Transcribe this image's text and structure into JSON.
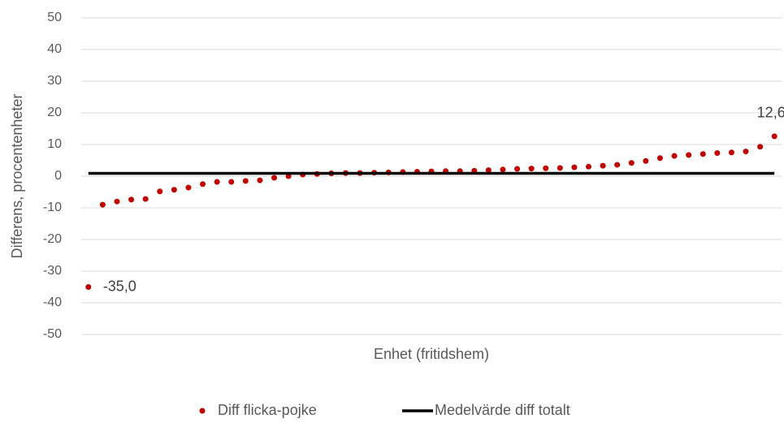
{
  "chart_data": {
    "type": "scatter",
    "ylabel": "Differens, procentenheter",
    "xlabel": "Enhet (fritidshem)",
    "categories": [
      null,
      null,
      null,
      null,
      null,
      null,
      null,
      null,
      null,
      null,
      null,
      null,
      null,
      null,
      null,
      null,
      null,
      null,
      null,
      null,
      null,
      null,
      null,
      null,
      null,
      null,
      null,
      null,
      null,
      null,
      null,
      null,
      null,
      null,
      null,
      null,
      null,
      null,
      null,
      null,
      null,
      null,
      null,
      null,
      null,
      null,
      null,
      null,
      null
    ],
    "series": [
      {
        "name": "Diff flicka-pojke",
        "color": "#c00000",
        "kind": "dot",
        "values": [
          -35.0,
          -9,
          -8,
          -7.4,
          -7.2,
          -4.8,
          -4.3,
          -3.6,
          -2.5,
          -1.8,
          -1.8,
          -1.5,
          -1.3,
          -0.5,
          0,
          0.5,
          0.7,
          0.9,
          1.0,
          1.0,
          1.1,
          1.2,
          1.3,
          1.4,
          1.5,
          1.6,
          1.6,
          1.7,
          1.9,
          2.1,
          2.3,
          2.4,
          2.5,
          2.6,
          2.8,
          3.0,
          3.3,
          3.6,
          4.2,
          4.8,
          5.7,
          6.4,
          6.7,
          7.0,
          7.3,
          7.5,
          7.8,
          9.3,
          12.6
        ],
        "value_labels": [
          "-35,0",
          null,
          null,
          null,
          null,
          null,
          null,
          null,
          null,
          null,
          null,
          null,
          null,
          null,
          null,
          null,
          null,
          null,
          null,
          null,
          null,
          null,
          null,
          null,
          null,
          null,
          null,
          null,
          null,
          null,
          null,
          null,
          null,
          null,
          null,
          null,
          null,
          null,
          null,
          null,
          null,
          null,
          null,
          null,
          null,
          null,
          null,
          null,
          "12,6"
        ]
      },
      {
        "name": "Medelvärde diff totalt",
        "color": "#000000",
        "kind": "line",
        "values": [
          0.9,
          0.9,
          0.9,
          0.9,
          0.9,
          0.9,
          0.9,
          0.9,
          0.9,
          0.9,
          0.9,
          0.9,
          0.9,
          0.9,
          0.9,
          0.9,
          0.9,
          0.9,
          0.9,
          0.9,
          0.9,
          0.9,
          0.9,
          0.9,
          0.9,
          0.9,
          0.9,
          0.9,
          0.9,
          0.9,
          0.9,
          0.9,
          0.9,
          0.9,
          0.9,
          0.9,
          0.9,
          0.9,
          0.9,
          0.9,
          0.9,
          0.9,
          0.9,
          0.9,
          0.9,
          0.9,
          0.9,
          0.9,
          0.9
        ]
      }
    ],
    "ylim": [
      -50,
      50
    ],
    "yticks": [
      -50,
      -40,
      -30,
      -20,
      -10,
      0,
      10,
      20,
      30,
      40,
      50
    ],
    "grid": true,
    "legend": "bottom"
  }
}
